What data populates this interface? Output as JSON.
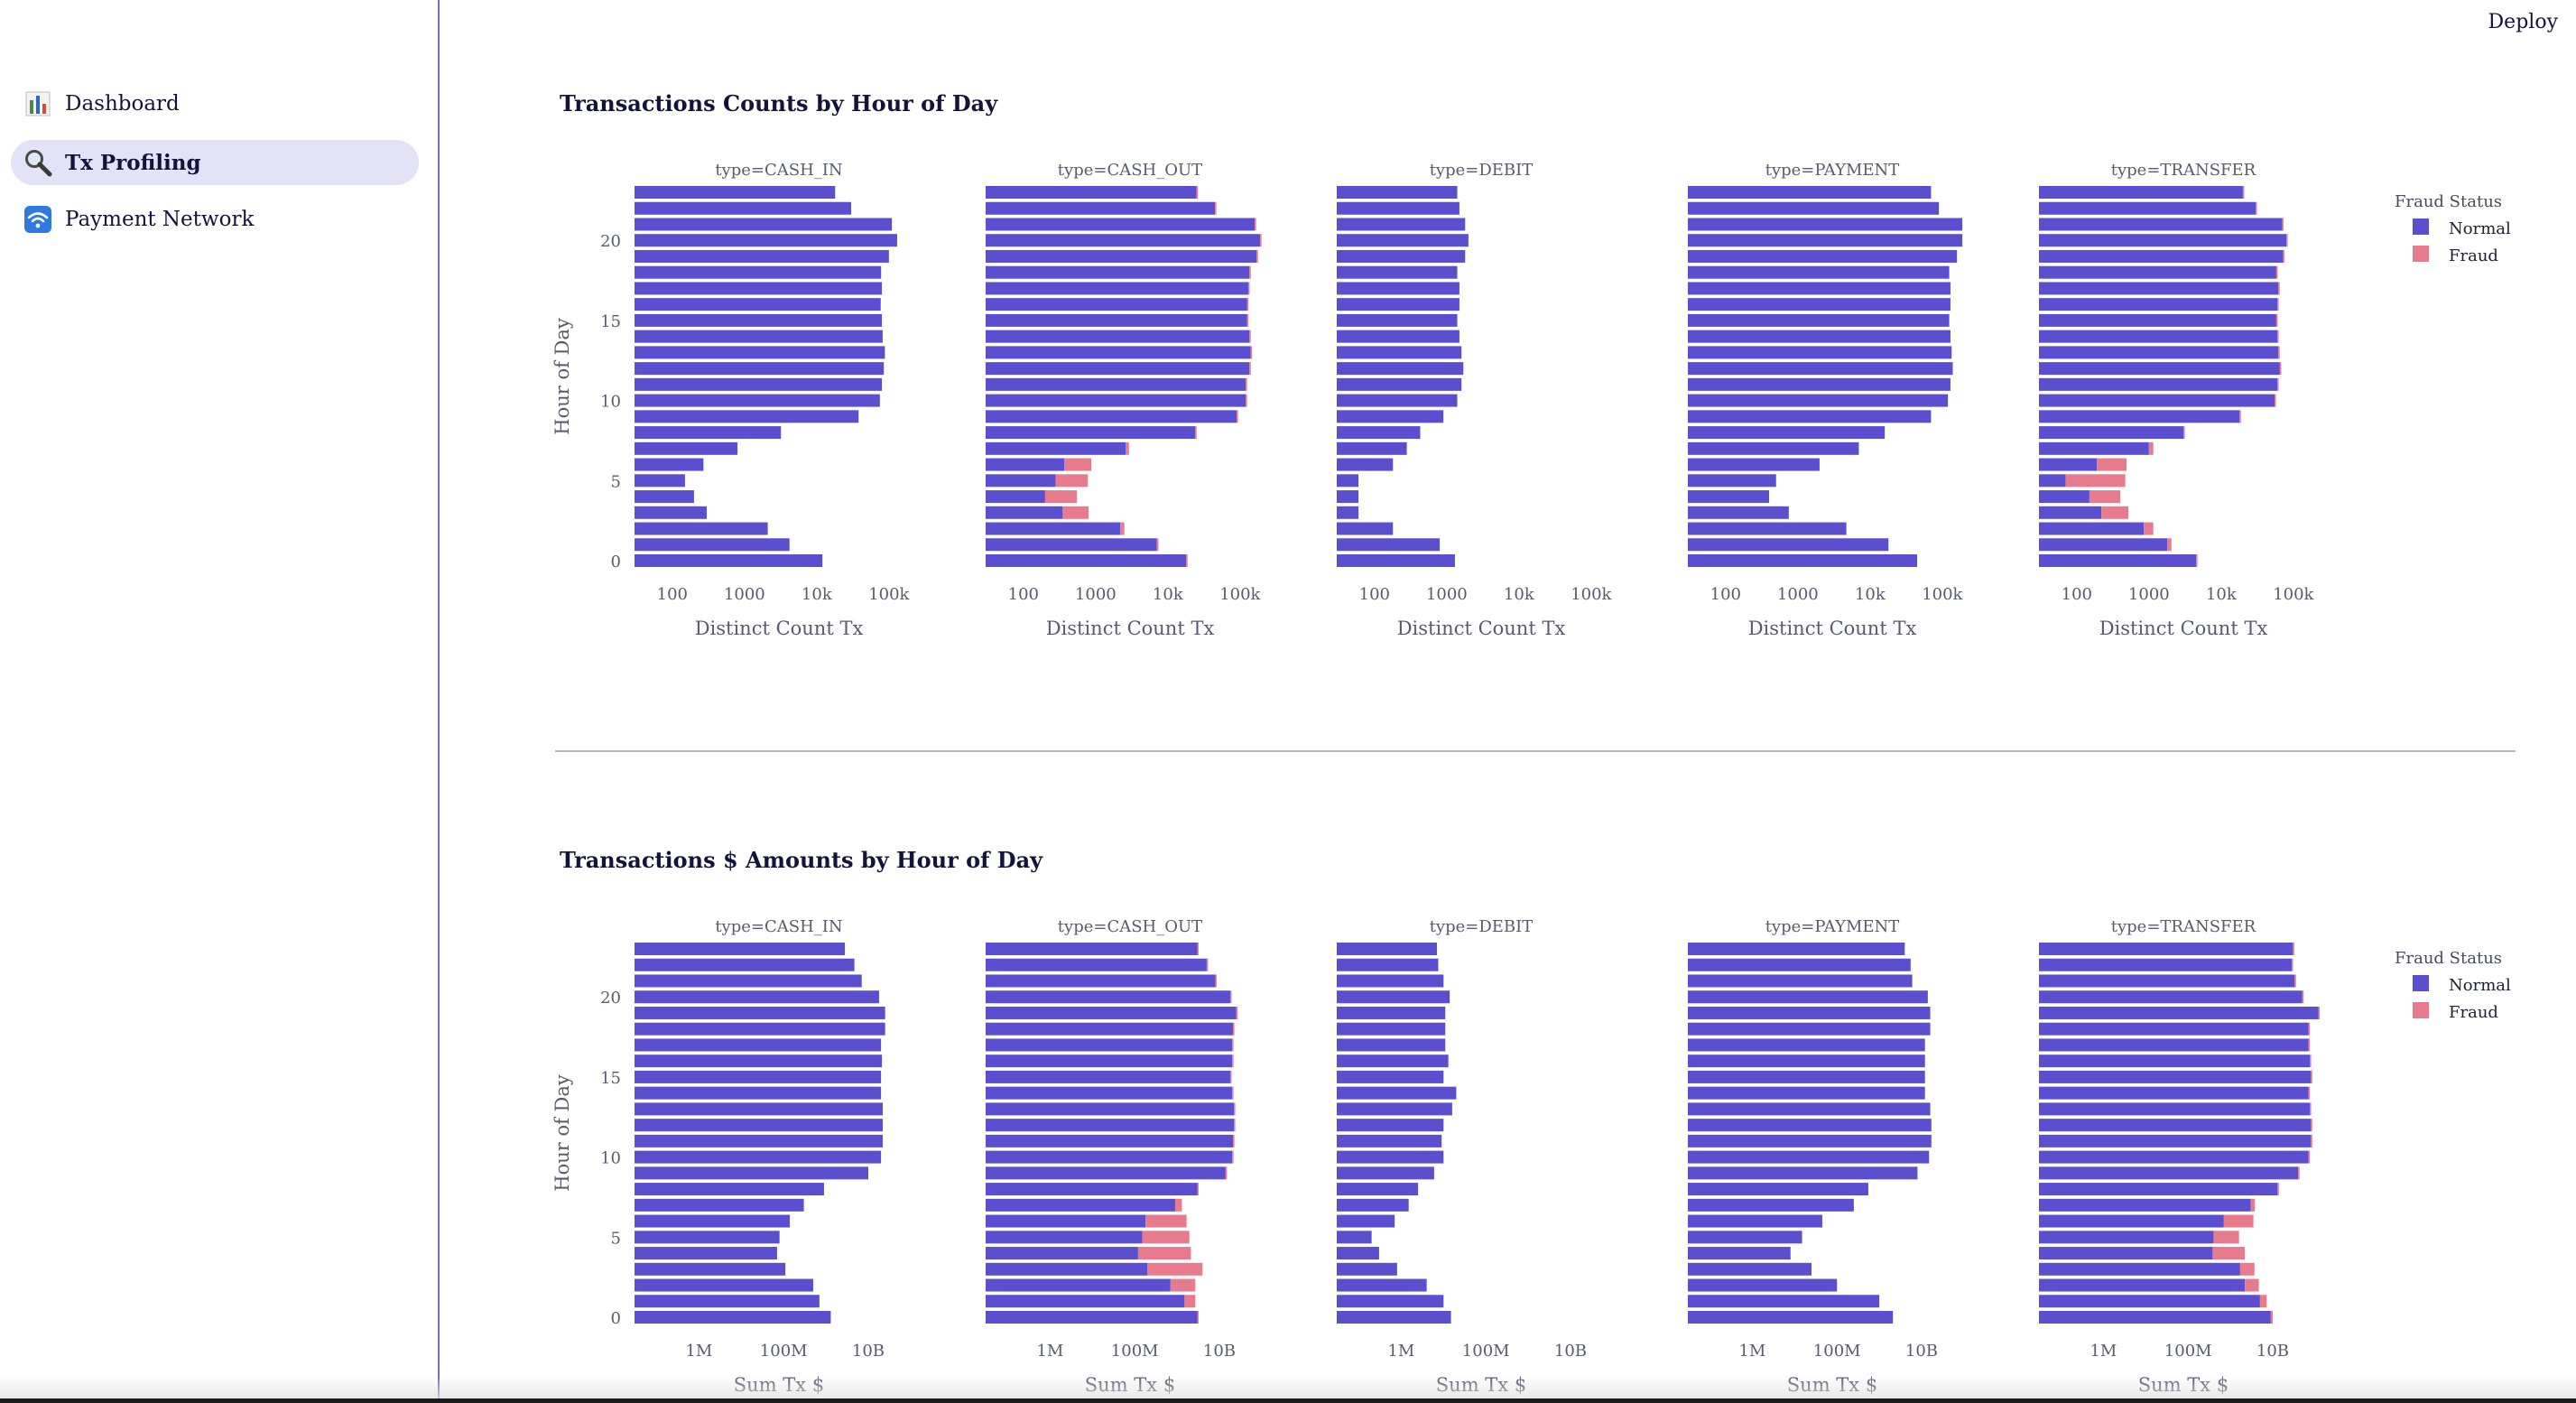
{
  "header": {
    "deploy_label": "Deploy"
  },
  "sidebar": {
    "items": [
      {
        "label": "Dashboard",
        "icon": "bar-chart-icon",
        "active": false
      },
      {
        "label": "Tx Profiling",
        "icon": "magnifier-icon",
        "active": true
      },
      {
        "label": "Payment Network",
        "icon": "wifi-icon",
        "active": false
      }
    ]
  },
  "colors": {
    "normal": "#5b4fcf",
    "fraud": "#e87a8e",
    "accent": "#6f6fd6",
    "active_bg": "#e3e2f6"
  },
  "charts": {
    "counts_title": "Transactions Counts by Hour of Day",
    "amounts_title": "Transactions $ Amounts by Hour of Day"
  },
  "chart_data": [
    {
      "type": "bar",
      "orientation": "horizontal",
      "stacked": true,
      "title": "Transactions Counts by Hour of Day",
      "ylabel": "Hour of Day",
      "xlabel": "Distinct Count Tx",
      "x_scale": "log",
      "xlim": [
        30,
        300000
      ],
      "x_ticks": [
        100,
        1000,
        10000,
        100000
      ],
      "x_tick_labels": [
        "100",
        "1000",
        "10k",
        "100k"
      ],
      "y_ticks": [
        0,
        5,
        10,
        15,
        20
      ],
      "y_tick_labels": [
        "0",
        "5",
        "10",
        "15",
        "20"
      ],
      "hours": [
        0,
        1,
        2,
        3,
        4,
        5,
        6,
        7,
        8,
        9,
        10,
        11,
        12,
        13,
        14,
        15,
        16,
        17,
        18,
        19,
        20,
        21,
        22,
        23
      ],
      "legend": {
        "title": "Fraud Status",
        "entries": [
          "Normal",
          "Fraud"
        ],
        "position": "right"
      },
      "facets": [
        {
          "title": "type=CASH_IN",
          "normal": [
            12000,
            4200,
            2100,
            300,
            200,
            150,
            270,
            800,
            3200,
            38000,
            75000,
            80000,
            85000,
            88000,
            82000,
            80000,
            77000,
            80000,
            78000,
            100000,
            130000,
            110000,
            30000,
            18000
          ],
          "fraud": [
            0,
            0,
            0,
            0,
            0,
            0,
            0,
            0,
            0,
            0,
            0,
            0,
            0,
            0,
            0,
            0,
            0,
            0,
            0,
            0,
            0,
            0,
            0,
            0
          ]
        },
        {
          "title": "type=CASH_OUT",
          "normal": [
            18000,
            7000,
            2200,
            350,
            200,
            280,
            370,
            2600,
            24000,
            90000,
            120000,
            120000,
            135000,
            140000,
            135000,
            125000,
            125000,
            130000,
            135000,
            170000,
            190000,
            160000,
            45000,
            25000
          ],
          "fraud": [
            500,
            400,
            300,
            450,
            350,
            500,
            500,
            300,
            300,
            300,
            300,
            300,
            300,
            300,
            300,
            300,
            300,
            300,
            300,
            300,
            300,
            300,
            300,
            300
          ]
        },
        {
          "title": "type=DEBIT",
          "normal": [
            1300,
            800,
            180,
            60,
            60,
            60,
            180,
            280,
            430,
            900,
            1400,
            1600,
            1700,
            1600,
            1500,
            1400,
            1500,
            1500,
            1400,
            1800,
            2000,
            1800,
            1500,
            1400
          ],
          "fraud": [
            0,
            0,
            0,
            0,
            0,
            0,
            0,
            0,
            0,
            0,
            0,
            0,
            0,
            0,
            0,
            0,
            0,
            0,
            0,
            0,
            0,
            0,
            0,
            0
          ]
        },
        {
          "title": "type=PAYMENT",
          "normal": [
            45000,
            18000,
            4700,
            750,
            400,
            500,
            2000,
            7000,
            16000,
            70000,
            120000,
            130000,
            140000,
            135000,
            130000,
            125000,
            130000,
            130000,
            125000,
            160000,
            190000,
            190000,
            90000,
            70000
          ],
          "fraud": [
            0,
            0,
            0,
            0,
            0,
            0,
            0,
            0,
            0,
            0,
            0,
            0,
            0,
            0,
            0,
            0,
            0,
            0,
            0,
            0,
            0,
            0,
            0,
            0
          ]
        },
        {
          "title": "type=TRANSFER",
          "normal": [
            4500,
            1800,
            850,
            220,
            150,
            70,
            190,
            1000,
            3000,
            18000,
            55000,
            60000,
            65000,
            62000,
            60000,
            58000,
            60000,
            62000,
            58000,
            72000,
            80000,
            70000,
            30000,
            20000
          ],
          "fraud": [
            200,
            250,
            300,
            300,
            250,
            400,
            300,
            150,
            120,
            120,
            120,
            120,
            120,
            120,
            120,
            120,
            120,
            120,
            120,
            120,
            120,
            120,
            120,
            120
          ]
        }
      ]
    },
    {
      "type": "bar",
      "orientation": "horizontal",
      "stacked": true,
      "title": "Transactions $ Amounts by Hour of Day",
      "ylabel": "Hour of Day",
      "xlabel": "Sum Tx $",
      "x_scale": "log",
      "xlim": [
        30000,
        200000000000
      ],
      "x_ticks": [
        1000000,
        100000000,
        10000000000
      ],
      "x_tick_labels": [
        "1M",
        "100M",
        "10B"
      ],
      "y_ticks": [
        0,
        5,
        10,
        15,
        20
      ],
      "y_tick_labels": [
        "0",
        "5",
        "10",
        "15",
        "20"
      ],
      "hours": [
        0,
        1,
        2,
        3,
        4,
        5,
        6,
        7,
        8,
        9,
        10,
        11,
        12,
        13,
        14,
        15,
        16,
        17,
        18,
        19,
        20,
        21,
        22,
        23
      ],
      "legend": {
        "title": "Fraud Status",
        "entries": [
          "Normal",
          "Fraud"
        ],
        "position": "right"
      },
      "facets": [
        {
          "title": "type=CASH_IN",
          "normal": [
            1300000000,
            700000000,
            500000000,
            110000000,
            70000000,
            80000000,
            140000000,
            300000000,
            900000000,
            10000000000,
            20000000000,
            22000000000,
            22000000000,
            22000000000,
            20000000000,
            20000000000,
            21000000000,
            20000000000,
            25000000000,
            25000000000,
            18000000000,
            7000000000,
            4700000000,
            2800000000
          ],
          "fraud": [
            0,
            0,
            0,
            0,
            0,
            0,
            0,
            0,
            0,
            0,
            0,
            0,
            0,
            0,
            0,
            0,
            0,
            0,
            0,
            0,
            0,
            0,
            0,
            0
          ]
        },
        {
          "title": "type=CASH_OUT",
          "normal": [
            3000000000,
            1500000000,
            700000000,
            200000000,
            120000000,
            150000000,
            180000000,
            900000000,
            3000000000,
            14000000000,
            20000000000,
            21000000000,
            22000000000,
            22000000000,
            20000000000,
            18000000000,
            20000000000,
            20000000000,
            21000000000,
            25000000000,
            18000000000,
            8000000000,
            5000000000,
            3000000000
          ],
          "fraud": [
            200000000,
            1200000000,
            2000000000,
            3800000000,
            2000000000,
            1800000000,
            1500000000,
            400000000,
            200000000,
            200000000,
            200000000,
            200000000,
            200000000,
            200000000,
            200000000,
            200000000,
            200000000,
            200000000,
            200000000,
            200000000,
            200000000,
            200000000,
            200000000,
            200000000
          ]
        },
        {
          "title": "type=DEBIT",
          "normal": [
            15000000,
            10000000,
            4000000,
            800000,
            300000,
            200000,
            700000,
            1500000,
            2500000,
            6000000,
            10000000,
            9000000,
            10000000,
            16000000,
            20000000,
            10000000,
            13000000,
            11000000,
            11000000,
            11000000,
            14000000,
            10000000,
            7500000,
            7000000
          ],
          "fraud": [
            0,
            0,
            0,
            0,
            0,
            0,
            0,
            0,
            0,
            0,
            0,
            0,
            0,
            0,
            0,
            0,
            0,
            0,
            0,
            0,
            0,
            0,
            0,
            0
          ]
        },
        {
          "title": "type=PAYMENT",
          "normal": [
            2100000000,
            1000000000,
            100000000,
            25000000,
            8000000,
            15000000,
            45000000,
            250000000,
            550000000,
            8000000000,
            15000000000,
            17000000000,
            17000000000,
            16000000000,
            12000000000,
            12000000000,
            12000000000,
            12000000000,
            16000000000,
            16000000000,
            14000000000,
            6000000000,
            5500000000,
            4000000000
          ],
          "fraud": [
            0,
            0,
            0,
            0,
            0,
            0,
            0,
            0,
            0,
            0,
            0,
            0,
            0,
            0,
            0,
            0,
            0,
            0,
            0,
            0,
            0,
            0,
            0,
            0
          ]
        },
        {
          "title": "type=TRANSFER",
          "normal": [
            9000000000,
            5000000000,
            2200000000,
            1700000000,
            380000000,
            400000000,
            700000000,
            3000000000,
            13000000000,
            40000000000,
            70000000000,
            80000000000,
            80000000000,
            75000000000,
            70000000000,
            80000000000,
            75000000000,
            70000000000,
            70000000000,
            120000000000,
            50000000000,
            33000000000,
            28000000000,
            30000000000
          ],
          "fraud": [
            1000000000,
            2200000000,
            2500000000,
            2000000000,
            1800000000,
            1200000000,
            2800000000,
            800000000,
            600000000,
            500000000,
            500000000,
            500000000,
            500000000,
            500000000,
            500000000,
            500000000,
            500000000,
            500000000,
            500000000,
            500000000,
            500000000,
            500000000,
            500000000,
            500000000
          ]
        }
      ]
    }
  ]
}
